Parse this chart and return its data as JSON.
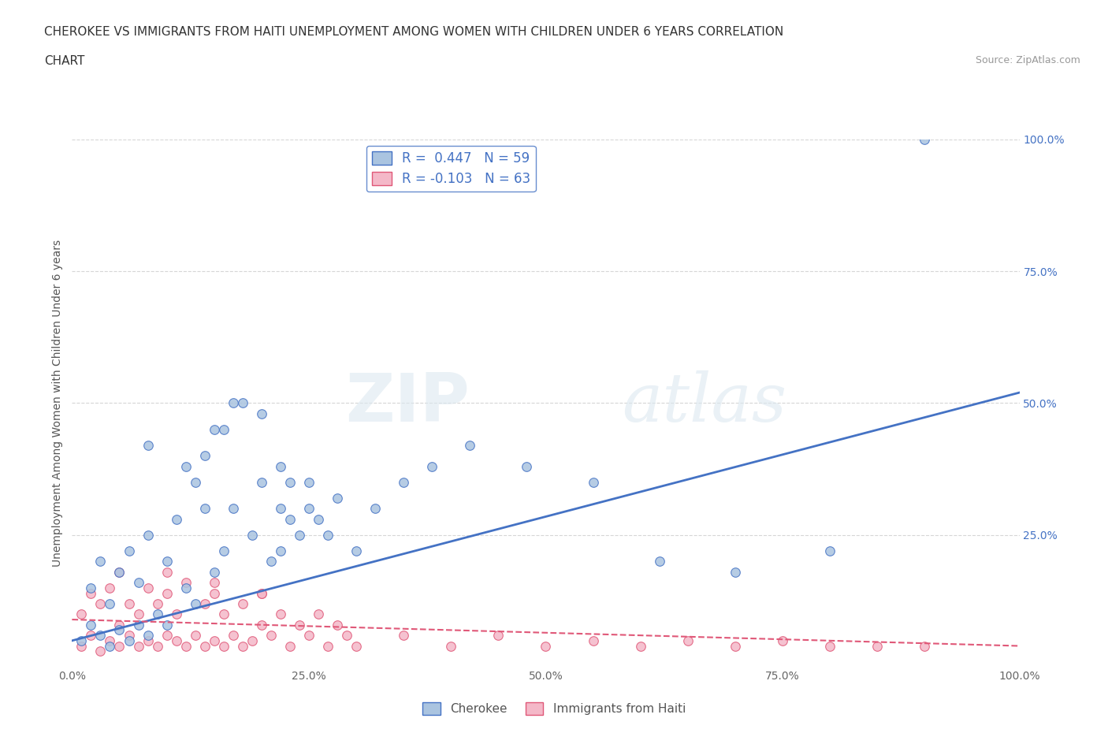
{
  "title_line1": "CHEROKEE VS IMMIGRANTS FROM HAITI UNEMPLOYMENT AMONG WOMEN WITH CHILDREN UNDER 6 YEARS CORRELATION",
  "title_line2": "CHART",
  "source_text": "Source: ZipAtlas.com",
  "ylabel": "Unemployment Among Women with Children Under 6 years",
  "xlim": [
    0,
    1.0
  ],
  "ylim": [
    0,
    1.0
  ],
  "xtick_labels": [
    "0.0%",
    "25.0%",
    "50.0%",
    "75.0%",
    "100.0%"
  ],
  "xtick_vals": [
    0.0,
    0.25,
    0.5,
    0.75,
    1.0
  ],
  "right_ytick_labels": [
    "25.0%",
    "50.0%",
    "75.0%",
    "100.0%"
  ],
  "right_ytick_vals": [
    0.25,
    0.5,
    0.75,
    1.0
  ],
  "cherokee_R": 0.447,
  "cherokee_N": 59,
  "haiti_R": -0.103,
  "haiti_N": 63,
  "cherokee_color": "#aac4e0",
  "haiti_color": "#f4b8c8",
  "cherokee_line_color": "#4472c4",
  "haiti_line_color": "#e05878",
  "watermark_zip": "ZIP",
  "watermark_atlas": "atlas",
  "background_color": "#ffffff",
  "grid_color": "#cccccc",
  "legend_label_cherokee": "Cherokee",
  "legend_label_haiti": "Immigrants from Haiti",
  "cherokee_x": [
    0.01,
    0.02,
    0.02,
    0.03,
    0.03,
    0.04,
    0.04,
    0.05,
    0.05,
    0.06,
    0.06,
    0.07,
    0.07,
    0.08,
    0.08,
    0.09,
    0.1,
    0.1,
    0.11,
    0.12,
    0.13,
    0.13,
    0.14,
    0.15,
    0.16,
    0.16,
    0.17,
    0.18,
    0.19,
    0.2,
    0.21,
    0.22,
    0.22,
    0.23,
    0.23,
    0.24,
    0.25,
    0.26,
    0.27,
    0.28,
    0.3,
    0.32,
    0.35,
    0.38,
    0.42,
    0.48,
    0.55,
    0.62,
    0.7,
    0.8,
    0.12,
    0.15,
    0.2,
    0.25,
    0.08,
    0.17,
    0.22,
    0.14,
    0.9
  ],
  "cherokee_y": [
    0.05,
    0.08,
    0.15,
    0.06,
    0.2,
    0.04,
    0.12,
    0.07,
    0.18,
    0.05,
    0.22,
    0.08,
    0.16,
    0.06,
    0.25,
    0.1,
    0.08,
    0.2,
    0.28,
    0.15,
    0.35,
    0.12,
    0.4,
    0.18,
    0.45,
    0.22,
    0.3,
    0.5,
    0.25,
    0.35,
    0.2,
    0.3,
    0.22,
    0.28,
    0.35,
    0.25,
    0.3,
    0.28,
    0.25,
    0.32,
    0.22,
    0.3,
    0.35,
    0.38,
    0.42,
    0.38,
    0.35,
    0.2,
    0.18,
    0.22,
    0.38,
    0.45,
    0.48,
    0.35,
    0.42,
    0.5,
    0.38,
    0.3,
    1.0
  ],
  "haiti_x": [
    0.01,
    0.01,
    0.02,
    0.02,
    0.03,
    0.03,
    0.04,
    0.04,
    0.05,
    0.05,
    0.05,
    0.06,
    0.06,
    0.07,
    0.07,
    0.08,
    0.08,
    0.09,
    0.09,
    0.1,
    0.1,
    0.11,
    0.11,
    0.12,
    0.12,
    0.13,
    0.14,
    0.14,
    0.15,
    0.15,
    0.16,
    0.16,
    0.17,
    0.18,
    0.18,
    0.19,
    0.2,
    0.2,
    0.21,
    0.22,
    0.23,
    0.24,
    0.25,
    0.26,
    0.27,
    0.28,
    0.29,
    0.3,
    0.35,
    0.4,
    0.45,
    0.5,
    0.55,
    0.6,
    0.65,
    0.7,
    0.75,
    0.8,
    0.85,
    0.9,
    0.1,
    0.15,
    0.2
  ],
  "haiti_y": [
    0.04,
    0.1,
    0.06,
    0.14,
    0.03,
    0.12,
    0.05,
    0.15,
    0.04,
    0.08,
    0.18,
    0.06,
    0.12,
    0.04,
    0.1,
    0.05,
    0.15,
    0.04,
    0.12,
    0.06,
    0.14,
    0.05,
    0.1,
    0.04,
    0.16,
    0.06,
    0.04,
    0.12,
    0.05,
    0.14,
    0.04,
    0.1,
    0.06,
    0.04,
    0.12,
    0.05,
    0.08,
    0.14,
    0.06,
    0.1,
    0.04,
    0.08,
    0.06,
    0.1,
    0.04,
    0.08,
    0.06,
    0.04,
    0.06,
    0.04,
    0.06,
    0.04,
    0.05,
    0.04,
    0.05,
    0.04,
    0.05,
    0.04,
    0.04,
    0.04,
    0.18,
    0.16,
    0.14
  ],
  "cherokee_reg": [
    0.05,
    0.52
  ],
  "haiti_reg": [
    0.09,
    0.04
  ]
}
